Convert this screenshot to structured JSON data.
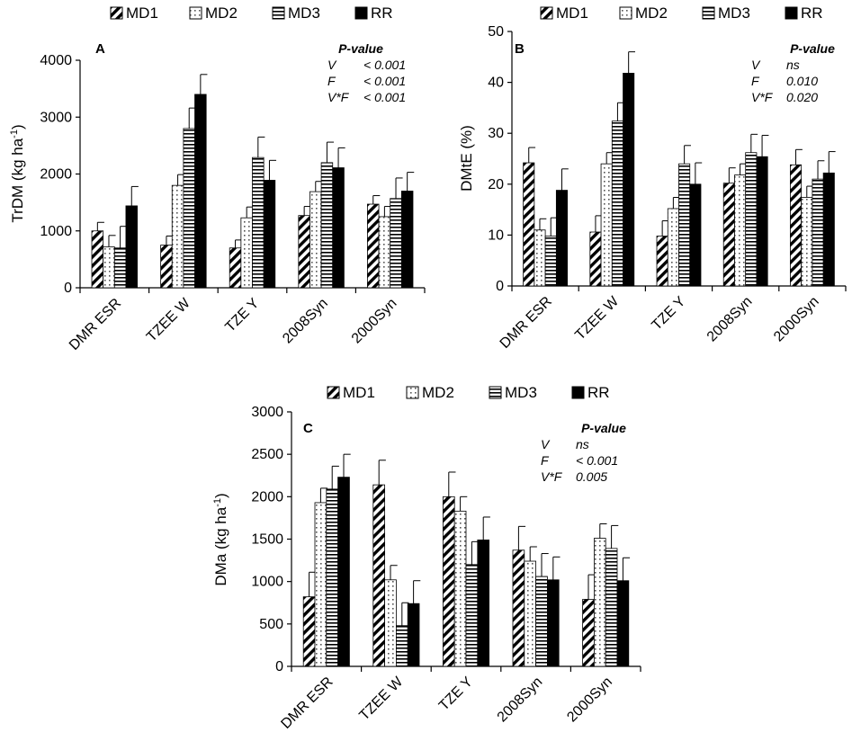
{
  "legend": {
    "series": [
      {
        "name": "MD1",
        "pattern": "diagonal"
      },
      {
        "name": "MD2",
        "pattern": "dots"
      },
      {
        "name": "MD3",
        "pattern": "horizontal"
      },
      {
        "name": "RR",
        "pattern": "solid"
      }
    ]
  },
  "colors": {
    "ink": "#000000",
    "background": "#ffffff"
  },
  "chart_data": [
    {
      "type": "bar",
      "panel": "A",
      "ylabel": "TrDM (kg ha",
      "ylabel_sup": "-1",
      "ylabel_tail": ")",
      "ylim": [
        0,
        4000
      ],
      "yticks": [
        0,
        1000,
        2000,
        3000,
        4000
      ],
      "categories": [
        "DMR ESR",
        "TZEE W",
        "TZE Y",
        "2008Syn",
        "2000Syn"
      ],
      "series": [
        {
          "name": "MD1",
          "values": [
            1000,
            750,
            700,
            1270,
            1470
          ],
          "errors": [
            150,
            160,
            140,
            160,
            150
          ]
        },
        {
          "name": "MD2",
          "values": [
            720,
            1800,
            1230,
            1690,
            1250
          ],
          "errors": [
            200,
            190,
            190,
            180,
            180
          ]
        },
        {
          "name": "MD3",
          "values": [
            700,
            2800,
            2290,
            2200,
            1570
          ],
          "errors": [
            380,
            360,
            360,
            360,
            360
          ]
        },
        {
          "name": "RR",
          "values": [
            1440,
            3400,
            1890,
            2110,
            1700
          ],
          "errors": [
            340,
            350,
            350,
            350,
            330
          ]
        }
      ],
      "pvalue": {
        "title": "P-value",
        "rows": [
          {
            "label": "V",
            "value": "< 0.001"
          },
          {
            "label": "F",
            "value": "< 0.001"
          },
          {
            "label": "V*F",
            "value": "< 0.001"
          }
        ]
      }
    },
    {
      "type": "bar",
      "panel": "B",
      "ylabel": "DMtE (%)",
      "ylabel_sup": "",
      "ylabel_tail": "",
      "ylim": [
        0,
        50
      ],
      "yticks": [
        0,
        10,
        20,
        30,
        40,
        50
      ],
      "categories": [
        "DMR ESR",
        "TZEE W",
        "TZE Y",
        "2008Syn",
        "2000Syn"
      ],
      "series": [
        {
          "name": "MD1",
          "values": [
            24.2,
            10.6,
            9.8,
            20.2,
            23.8
          ],
          "errors": [
            3.0,
            3.2,
            3.0,
            3.0,
            3.0
          ]
        },
        {
          "name": "MD2",
          "values": [
            11.0,
            24.0,
            15.2,
            21.8,
            17.4
          ],
          "errors": [
            2.2,
            2.2,
            2.2,
            2.2,
            2.2
          ]
        },
        {
          "name": "MD3",
          "values": [
            9.8,
            32.4,
            24.0,
            26.2,
            21.0
          ],
          "errors": [
            3.6,
            3.6,
            3.6,
            3.6,
            3.6
          ]
        },
        {
          "name": "RR",
          "values": [
            18.8,
            41.8,
            20.0,
            25.4,
            22.2
          ],
          "errors": [
            4.2,
            4.2,
            4.2,
            4.2,
            4.2
          ]
        }
      ],
      "pvalue": {
        "title": "P-value",
        "rows": [
          {
            "label": "V",
            "value": "ns"
          },
          {
            "label": "F",
            "value": "0.010"
          },
          {
            "label": "V*F",
            "value": "0.020"
          }
        ]
      }
    },
    {
      "type": "bar",
      "panel": "C",
      "ylabel": "DMa (kg ha",
      "ylabel_sup": "-1",
      "ylabel_tail": ")",
      "ylim": [
        0,
        3000
      ],
      "yticks": [
        0,
        500,
        1000,
        1500,
        2000,
        2500,
        3000
      ],
      "categories": [
        "DMR ESR",
        "TZEE W",
        "TZE Y",
        "2008Syn",
        "2000Syn"
      ],
      "series": [
        {
          "name": "MD1",
          "values": [
            820,
            2140,
            2000,
            1370,
            790
          ],
          "errors": [
            290,
            290,
            290,
            280,
            290
          ]
        },
        {
          "name": "MD2",
          "values": [
            1930,
            1020,
            1830,
            1240,
            1510
          ],
          "errors": [
            170,
            170,
            170,
            170,
            170
          ]
        },
        {
          "name": "MD3",
          "values": [
            2090,
            480,
            1200,
            1060,
            1390
          ],
          "errors": [
            270,
            270,
            270,
            270,
            270
          ]
        },
        {
          "name": "RR",
          "values": [
            2230,
            740,
            1490,
            1020,
            1010
          ],
          "errors": [
            270,
            270,
            270,
            270,
            270
          ]
        }
      ],
      "pvalue": {
        "title": "P-value",
        "rows": [
          {
            "label": "V",
            "value": "ns"
          },
          {
            "label": "F",
            "value": "< 0.001"
          },
          {
            "label": "V*F",
            "value": "0.005"
          }
        ]
      }
    }
  ]
}
